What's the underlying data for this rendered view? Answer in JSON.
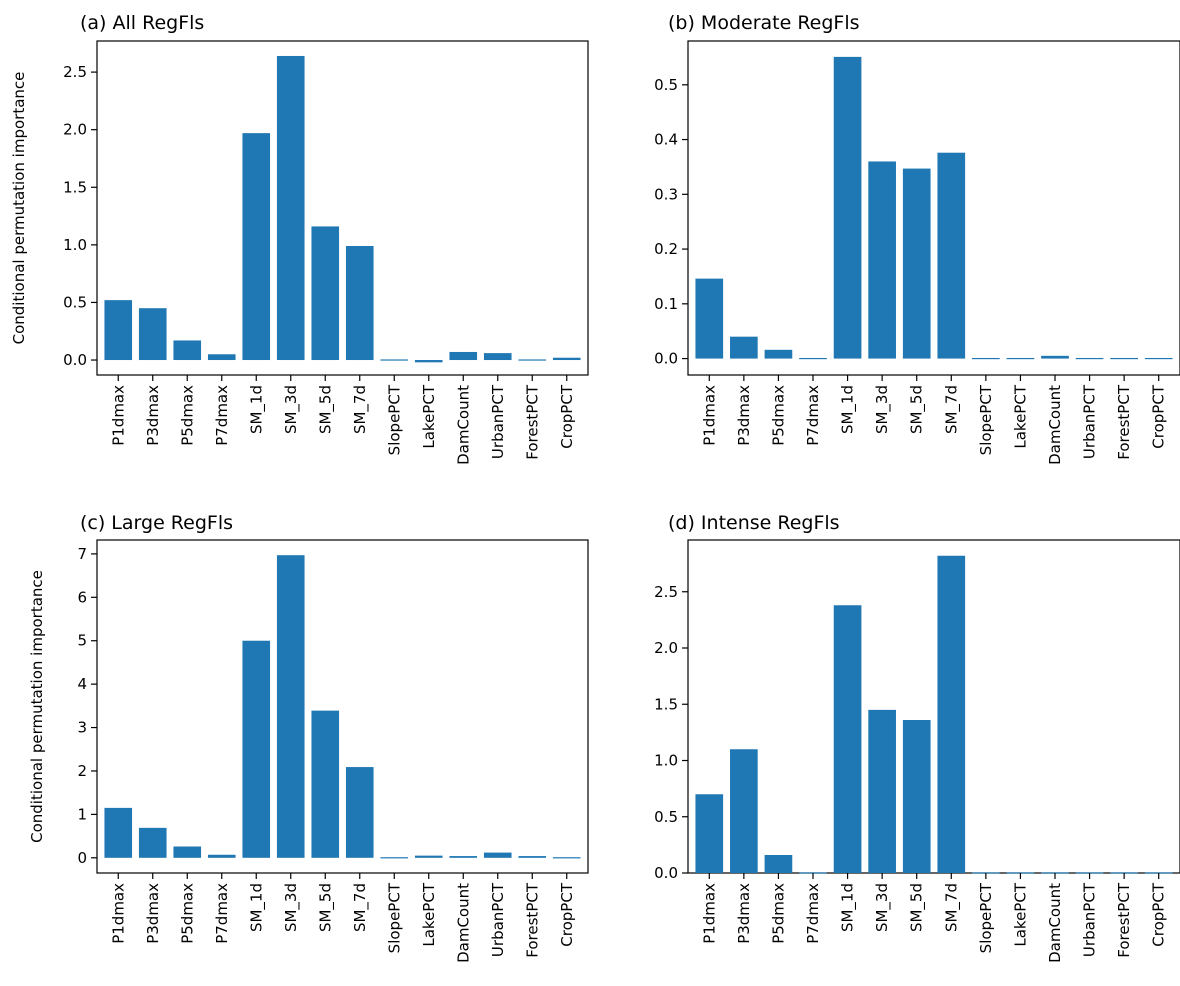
{
  "chart_data": [
    {
      "type": "bar",
      "title": "(a) All RegFls",
      "ylabel": "Conditional permutation importance",
      "categories": [
        "P1dmax",
        "P3dmax",
        "P5dmax",
        "P7dmax",
        "SM_1d",
        "SM_3d",
        "SM_5d",
        "SM_7d",
        "SlopePCT",
        "LakePCT",
        "DamCount",
        "UrbanPCT",
        "ForestPCT",
        "CropPCT"
      ],
      "values": [
        0.52,
        0.45,
        0.17,
        0.05,
        1.97,
        2.64,
        1.16,
        0.99,
        -0.01,
        -0.02,
        0.07,
        0.06,
        -0.01,
        0.02
      ],
      "ylim": [
        -0.13,
        2.77
      ],
      "yticks": [
        0.0,
        0.5,
        1.0,
        1.5,
        2.0,
        2.5
      ],
      "ytick_labels": [
        "0.0",
        "0.5",
        "1.0",
        "1.5",
        "2.0",
        "2.5"
      ]
    },
    {
      "type": "bar",
      "title": "(b) Moderate RegFls",
      "ylabel": "",
      "categories": [
        "P1dmax",
        "P3dmax",
        "P5dmax",
        "P7dmax",
        "SM_1d",
        "SM_3d",
        "SM_5d",
        "SM_7d",
        "SlopePCT",
        "LakePCT",
        "DamCount",
        "UrbanPCT",
        "ForestPCT",
        "CropPCT"
      ],
      "values": [
        0.146,
        0.04,
        0.016,
        0.002,
        0.551,
        0.36,
        0.347,
        0.376,
        -0.002,
        0.001,
        0.005,
        0.0,
        -0.002,
        0.001
      ],
      "ylim": [
        -0.03,
        0.58
      ],
      "yticks": [
        0.0,
        0.1,
        0.2,
        0.3,
        0.4,
        0.5
      ],
      "ytick_labels": [
        "0.0",
        "0.1",
        "0.2",
        "0.3",
        "0.4",
        "0.5"
      ]
    },
    {
      "type": "bar",
      "title": "(c) Large RegFls",
      "ylabel": "Conditional permutation importance",
      "categories": [
        "P1dmax",
        "P3dmax",
        "P5dmax",
        "P7dmax",
        "SM_1d",
        "SM_3d",
        "SM_5d",
        "SM_7d",
        "SlopePCT",
        "LakePCT",
        "DamCount",
        "UrbanPCT",
        "ForestPCT",
        "CropPCT"
      ],
      "values": [
        1.15,
        0.69,
        0.26,
        0.07,
        5.0,
        6.97,
        3.39,
        2.09,
        -0.01,
        0.05,
        0.04,
        0.12,
        0.04,
        -0.01
      ],
      "ylim": [
        -0.35,
        7.32
      ],
      "yticks": [
        0,
        1,
        2,
        3,
        4,
        5,
        6,
        7
      ],
      "ytick_labels": [
        "0",
        "1",
        "2",
        "3",
        "4",
        "5",
        "6",
        "7"
      ]
    },
    {
      "type": "bar",
      "title": "(d) Intense RegFls",
      "ylabel": "",
      "categories": [
        "P1dmax",
        "P3dmax",
        "P5dmax",
        "P7dmax",
        "SM_1d",
        "SM_3d",
        "SM_5d",
        "SM_7d",
        "SlopePCT",
        "LakePCT",
        "DamCount",
        "UrbanPCT",
        "ForestPCT",
        "CropPCT"
      ],
      "values": [
        0.7,
        1.1,
        0.16,
        0.0,
        2.38,
        1.45,
        1.36,
        2.82,
        0.0,
        0.0,
        0.0,
        0.0,
        0.0,
        0.0
      ],
      "ylim": [
        0.0,
        2.96
      ],
      "yticks": [
        0.0,
        0.5,
        1.0,
        1.5,
        2.0,
        2.5
      ],
      "ytick_labels": [
        "0.0",
        "0.5",
        "1.0",
        "1.5",
        "2.0",
        "2.5"
      ]
    }
  ]
}
